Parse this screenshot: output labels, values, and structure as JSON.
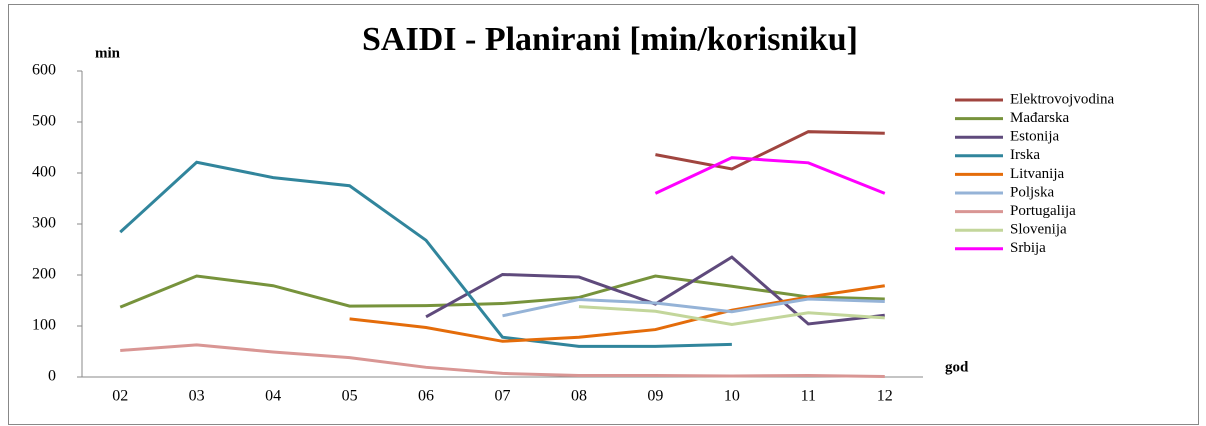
{
  "chart_data": {
    "type": "line",
    "title": "SAIDI - Planirani [min/korisniku]",
    "y_label": "min",
    "x_label": "god",
    "categories": [
      "02",
      "03",
      "04",
      "05",
      "06",
      "07",
      "08",
      "09",
      "10",
      "11",
      "12"
    ],
    "ylim": [
      0,
      600
    ],
    "yticks": [
      0,
      100,
      200,
      300,
      400,
      500,
      600
    ],
    "grid": false,
    "legend": "right",
    "series": [
      {
        "name": "Elektrovojvodina",
        "color": "#a0453f",
        "values": [
          null,
          null,
          null,
          null,
          null,
          null,
          null,
          436,
          408,
          481,
          478
        ]
      },
      {
        "name": "Mađarska",
        "color": "#77933c",
        "values": [
          137,
          198,
          179,
          139,
          140,
          144,
          156,
          198,
          178,
          157,
          153
        ]
      },
      {
        "name": "Estonija",
        "color": "#5f4a7c",
        "values": [
          null,
          null,
          null,
          null,
          118,
          201,
          196,
          143,
          235,
          104,
          121
        ]
      },
      {
        "name": "Irska",
        "color": "#31859c",
        "values": [
          284,
          421,
          391,
          375,
          268,
          78,
          60,
          60,
          64,
          null,
          null
        ]
      },
      {
        "name": "Litvanija",
        "color": "#e46c0a",
        "values": [
          null,
          null,
          null,
          114,
          97,
          70,
          78,
          93,
          131,
          157,
          179
        ]
      },
      {
        "name": "Poljska",
        "color": "#95b3d7",
        "values": [
          null,
          null,
          null,
          null,
          null,
          120,
          152,
          145,
          128,
          153,
          148
        ]
      },
      {
        "name": "Portugalija",
        "color": "#d99694",
        "values": [
          52,
          63,
          49,
          38,
          19,
          7,
          3,
          3,
          2,
          3,
          1
        ]
      },
      {
        "name": "Slovenija",
        "color": "#c3d69b",
        "values": [
          null,
          null,
          null,
          null,
          null,
          null,
          138,
          129,
          103,
          126,
          116
        ]
      },
      {
        "name": "Srbija",
        "color": "#ff00ff",
        "values": [
          null,
          null,
          null,
          null,
          null,
          null,
          null,
          360,
          430,
          420,
          360
        ]
      }
    ]
  }
}
